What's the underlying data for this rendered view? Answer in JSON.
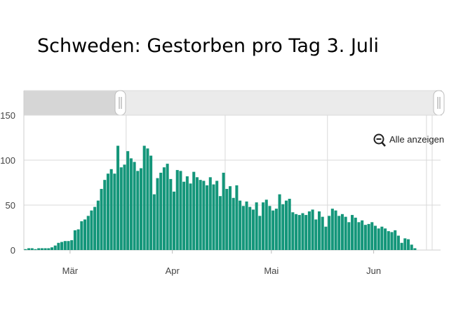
{
  "title": "Schweden: Gestorben pro Tag 3. Juli",
  "controls": {
    "reset_zoom_label": "Alle anzeigen",
    "reset_zoom_icon": "zoom-out-icon",
    "range_slider": {
      "start_fraction": 0.0,
      "end_fraction": 1.0
    }
  },
  "colors": {
    "bar": "#14967a",
    "grid": "#d9d9d9",
    "slider_selected": "#d6d6d6",
    "slider_track": "#ebebeb"
  },
  "chart_data": {
    "type": "bar",
    "title": "Schweden: Gestorben pro Tag 3. Juli",
    "xlabel": "",
    "ylabel": "",
    "ylim": [
      0,
      150
    ],
    "y_ticks": [
      0,
      50,
      100,
      150
    ],
    "x_tick_labels": [
      "Mär",
      "Apr",
      "Mai",
      "Jun"
    ],
    "x_start": "2020-03-01",
    "x_end": "2020-07-03",
    "grid": true,
    "values": [
      1,
      2,
      2,
      1,
      2,
      2,
      2,
      2,
      3,
      5,
      8,
      9,
      10,
      10,
      11,
      22,
      23,
      32,
      34,
      38,
      44,
      48,
      55,
      68,
      78,
      85,
      90,
      85,
      116,
      92,
      95,
      110,
      102,
      98,
      88,
      91,
      116,
      113,
      105,
      62,
      80,
      86,
      92,
      96,
      79,
      65,
      89,
      88,
      76,
      82,
      74,
      87,
      81,
      78,
      77,
      72,
      81,
      73,
      77,
      60,
      86,
      68,
      71,
      58,
      72,
      55,
      49,
      54,
      48,
      45,
      53,
      38,
      53,
      56,
      49,
      44,
      46,
      62,
      51,
      55,
      57,
      42,
      40,
      39,
      41,
      39,
      43,
      45,
      34,
      43,
      37,
      26,
      38,
      46,
      44,
      38,
      40,
      37,
      31,
      39,
      36,
      31,
      33,
      28,
      29,
      31,
      27,
      24,
      26,
      24,
      21,
      20,
      22,
      16,
      8,
      13,
      12,
      6,
      2
    ]
  }
}
